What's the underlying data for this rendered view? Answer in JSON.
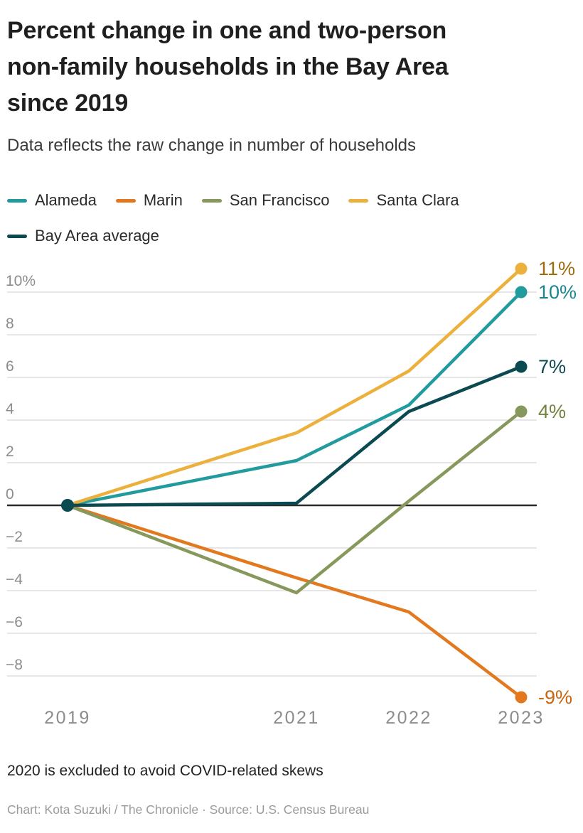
{
  "header": {
    "title_lines": [
      "Percent change in one and two-person",
      "non-family households in the Bay Area",
      "since 2019"
    ],
    "subtitle": "Data reflects the raw change in number of households"
  },
  "chart_data": {
    "type": "line",
    "x": [
      "2019",
      "2021",
      "2022",
      "2023"
    ],
    "series": [
      {
        "name": "Alameda",
        "color": "#219b9d",
        "label_color": "#1b868d",
        "values": [
          0,
          2.1,
          4.7,
          10
        ],
        "end_label": "10%"
      },
      {
        "name": "Marin",
        "color": "#e2791f",
        "label_color": "#c8650e",
        "values": [
          0,
          -3.4,
          -5,
          -9
        ],
        "end_label": "-9%"
      },
      {
        "name": "San Francisco",
        "color": "#87985c",
        "label_color": "#71823f",
        "values": [
          0,
          -4.1,
          0.2,
          4.4
        ],
        "end_label": "4%"
      },
      {
        "name": "Santa Clara",
        "color": "#ecb03c",
        "label_color": "#9c6f0e",
        "values": [
          0,
          3.4,
          6.3,
          11.1
        ],
        "end_label": "11%"
      },
      {
        "name": "Bay Area average",
        "color": "#0c4a52",
        "label_color": "#0c4a52",
        "values": [
          0,
          0.1,
          4.4,
          6.5
        ],
        "end_label": "7%"
      }
    ],
    "yticks": [
      10,
      8,
      6,
      4,
      2,
      0,
      -2,
      -4,
      -6,
      -8
    ],
    "ytick_labels": [
      "10%",
      "8",
      "6",
      "4",
      "2",
      "0",
      "−2",
      "−4",
      "−6",
      "−8"
    ],
    "xtick_labels": [
      "2019",
      "2021",
      "2022",
      "2023"
    ],
    "ylim": [
      -9.5,
      11.5
    ],
    "grid": true,
    "zero_baseline": true,
    "legend_position": "top",
    "draw_order": [
      1,
      2,
      0,
      3,
      4
    ]
  },
  "footer": {
    "note": "2020 is excluded to avoid COVID-related skews",
    "credit": "Chart: Kota Suzuki / The Chronicle · Source: U.S. Census Bureau"
  }
}
